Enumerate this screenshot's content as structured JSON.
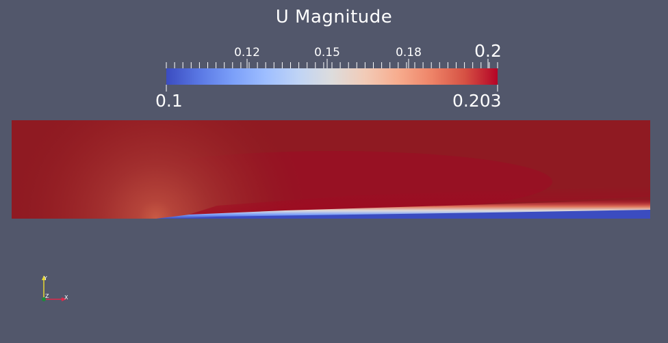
{
  "legend": {
    "title": "U Magnitude",
    "min_label": "0.1",
    "max_label": "0.203",
    "tick_labels": [
      "0.12",
      "0.15",
      "0.18",
      "0.2"
    ],
    "colormap": "Cool to Warm",
    "colors": {
      "low": "#3b4cc0",
      "mid": "#dddcdc",
      "high": "#b40426"
    }
  },
  "viewport": {
    "background": "#52576b"
  },
  "axes_widget": {
    "x_label": "X",
    "y_label": "Y",
    "z_label": "Z",
    "x_color": "#e0284a",
    "y_color": "#e8d832",
    "z_color": "#1e8a3a"
  }
}
